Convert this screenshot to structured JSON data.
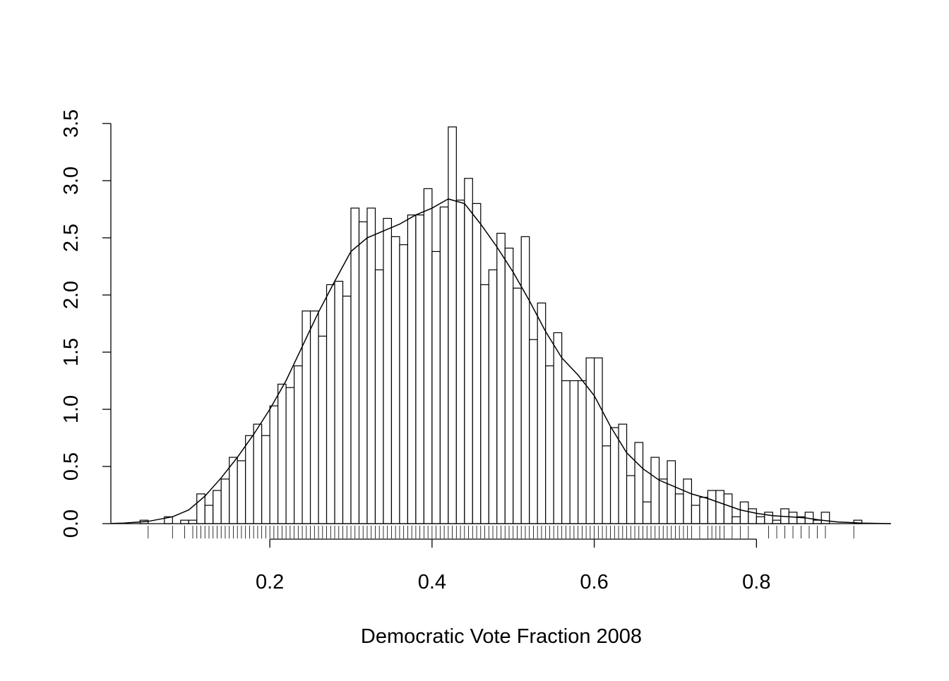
{
  "chart_data": {
    "type": "histogram",
    "xlabel": "Democratic Vote Fraction 2008",
    "bins": [
      0.04,
      0.05,
      0.06,
      0.07,
      0.08,
      0.09,
      0.1,
      0.11,
      0.12,
      0.13,
      0.14,
      0.15,
      0.16,
      0.17,
      0.18,
      0.19,
      0.2,
      0.21,
      0.22,
      0.23,
      0.24,
      0.25,
      0.26,
      0.27,
      0.28,
      0.29,
      0.3,
      0.31,
      0.32,
      0.33,
      0.34,
      0.35,
      0.36,
      0.37,
      0.38,
      0.39,
      0.4,
      0.41,
      0.42,
      0.43,
      0.44,
      0.45,
      0.46,
      0.47,
      0.48,
      0.49,
      0.5,
      0.51,
      0.52,
      0.53,
      0.54,
      0.55,
      0.56,
      0.57,
      0.58,
      0.59,
      0.6,
      0.61,
      0.62,
      0.63,
      0.64,
      0.65,
      0.66,
      0.67,
      0.68,
      0.69,
      0.7,
      0.71,
      0.72,
      0.73,
      0.74,
      0.75,
      0.76,
      0.77,
      0.78,
      0.79,
      0.8,
      0.81,
      0.82,
      0.83,
      0.84,
      0.85,
      0.86,
      0.87,
      0.88,
      0.89,
      0.9,
      0.91,
      0.92,
      0.93
    ],
    "values": [
      0.03,
      0,
      0,
      0.06,
      0,
      0.03,
      0.03,
      0.26,
      0.16,
      0.29,
      0.39,
      0.58,
      0.55,
      0.77,
      0.87,
      0.77,
      1.03,
      1.22,
      1.19,
      1.38,
      1.86,
      1.86,
      1.64,
      2.09,
      2.12,
      1.99,
      2.76,
      2.64,
      2.76,
      2.22,
      2.67,
      2.51,
      2.44,
      2.7,
      2.7,
      2.93,
      2.38,
      2.77,
      3.47,
      2.83,
      3.02,
      2.8,
      2.09,
      2.22,
      2.54,
      2.41,
      2.06,
      2.51,
      1.61,
      1.93,
      1.38,
      1.67,
      1.25,
      1.25,
      1.25,
      1.45,
      1.45,
      0.68,
      0.84,
      0.87,
      0.42,
      0.71,
      0.19,
      0.58,
      0.39,
      0.55,
      0.26,
      0.39,
      0.16,
      0.23,
      0.29,
      0.29,
      0.26,
      0.06,
      0.19,
      0.13,
      0.06,
      0.1,
      0.03,
      0.13,
      0.1,
      0.06,
      0.1,
      0.03,
      0.1,
      0,
      0,
      0,
      0.03
    ],
    "density": {
      "x": [
        0.005,
        0.02,
        0.05,
        0.08,
        0.1,
        0.12,
        0.14,
        0.16,
        0.18,
        0.2,
        0.22,
        0.24,
        0.26,
        0.28,
        0.3,
        0.32,
        0.34,
        0.36,
        0.38,
        0.4,
        0.42,
        0.44,
        0.46,
        0.48,
        0.5,
        0.52,
        0.54,
        0.56,
        0.58,
        0.6,
        0.62,
        0.64,
        0.66,
        0.68,
        0.7,
        0.72,
        0.74,
        0.76,
        0.78,
        0.8,
        0.82,
        0.84,
        0.86,
        0.88,
        0.9,
        0.93,
        0.965
      ],
      "y": [
        0.002,
        0.005,
        0.02,
        0.06,
        0.12,
        0.24,
        0.4,
        0.58,
        0.78,
        1.0,
        1.25,
        1.55,
        1.85,
        2.12,
        2.38,
        2.5,
        2.56,
        2.62,
        2.7,
        2.76,
        2.84,
        2.8,
        2.62,
        2.42,
        2.2,
        1.95,
        1.68,
        1.45,
        1.3,
        1.12,
        0.85,
        0.62,
        0.48,
        0.38,
        0.32,
        0.26,
        0.22,
        0.17,
        0.12,
        0.09,
        0.07,
        0.06,
        0.05,
        0.03,
        0.015,
        0.005,
        0
      ]
    },
    "rug": [
      0.05,
      0.08,
      0.095,
      0.105,
      0.11,
      0.115,
      0.12,
      0.125,
      0.13,
      0.135,
      0.14,
      0.145,
      0.15,
      0.155,
      0.16,
      0.165,
      0.17,
      0.175,
      0.18,
      0.185,
      0.19,
      0.195,
      0.2,
      0.205,
      0.21,
      0.215,
      0.22,
      0.225,
      0.23,
      0.235,
      0.24,
      0.245,
      0.25,
      0.255,
      0.26,
      0.265,
      0.27,
      0.275,
      0.28,
      0.285,
      0.29,
      0.295,
      0.3,
      0.305,
      0.31,
      0.315,
      0.32,
      0.325,
      0.33,
      0.335,
      0.34,
      0.345,
      0.35,
      0.355,
      0.36,
      0.365,
      0.37,
      0.375,
      0.38,
      0.385,
      0.39,
      0.395,
      0.4,
      0.405,
      0.41,
      0.415,
      0.42,
      0.425,
      0.43,
      0.435,
      0.44,
      0.445,
      0.45,
      0.455,
      0.46,
      0.465,
      0.47,
      0.475,
      0.48,
      0.485,
      0.49,
      0.495,
      0.5,
      0.505,
      0.51,
      0.515,
      0.52,
      0.525,
      0.53,
      0.535,
      0.54,
      0.545,
      0.55,
      0.555,
      0.56,
      0.565,
      0.57,
      0.575,
      0.58,
      0.585,
      0.59,
      0.595,
      0.6,
      0.605,
      0.61,
      0.615,
      0.62,
      0.625,
      0.63,
      0.635,
      0.64,
      0.645,
      0.65,
      0.655,
      0.66,
      0.665,
      0.67,
      0.675,
      0.68,
      0.685,
      0.69,
      0.695,
      0.7,
      0.705,
      0.71,
      0.715,
      0.72,
      0.73,
      0.74,
      0.745,
      0.75,
      0.755,
      0.76,
      0.77,
      0.78,
      0.79,
      0.815,
      0.825,
      0.835,
      0.845,
      0.855,
      0.865,
      0.875,
      0.885,
      0.92
    ],
    "xlim": [
      0.004,
      0.966
    ],
    "ylim": [
      0,
      3.5
    ],
    "xticks": [
      0.2,
      0.4,
      0.6,
      0.8
    ],
    "yticks": [
      {
        "value": 0,
        "label": "0.0"
      },
      0.5,
      {
        "value": 1,
        "label": "1.0"
      },
      1.5,
      {
        "value": 2,
        "label": "2.0"
      },
      2.5,
      {
        "value": 3,
        "label": "3.0"
      },
      3.5
    ],
    "color": "#ffffff"
  }
}
